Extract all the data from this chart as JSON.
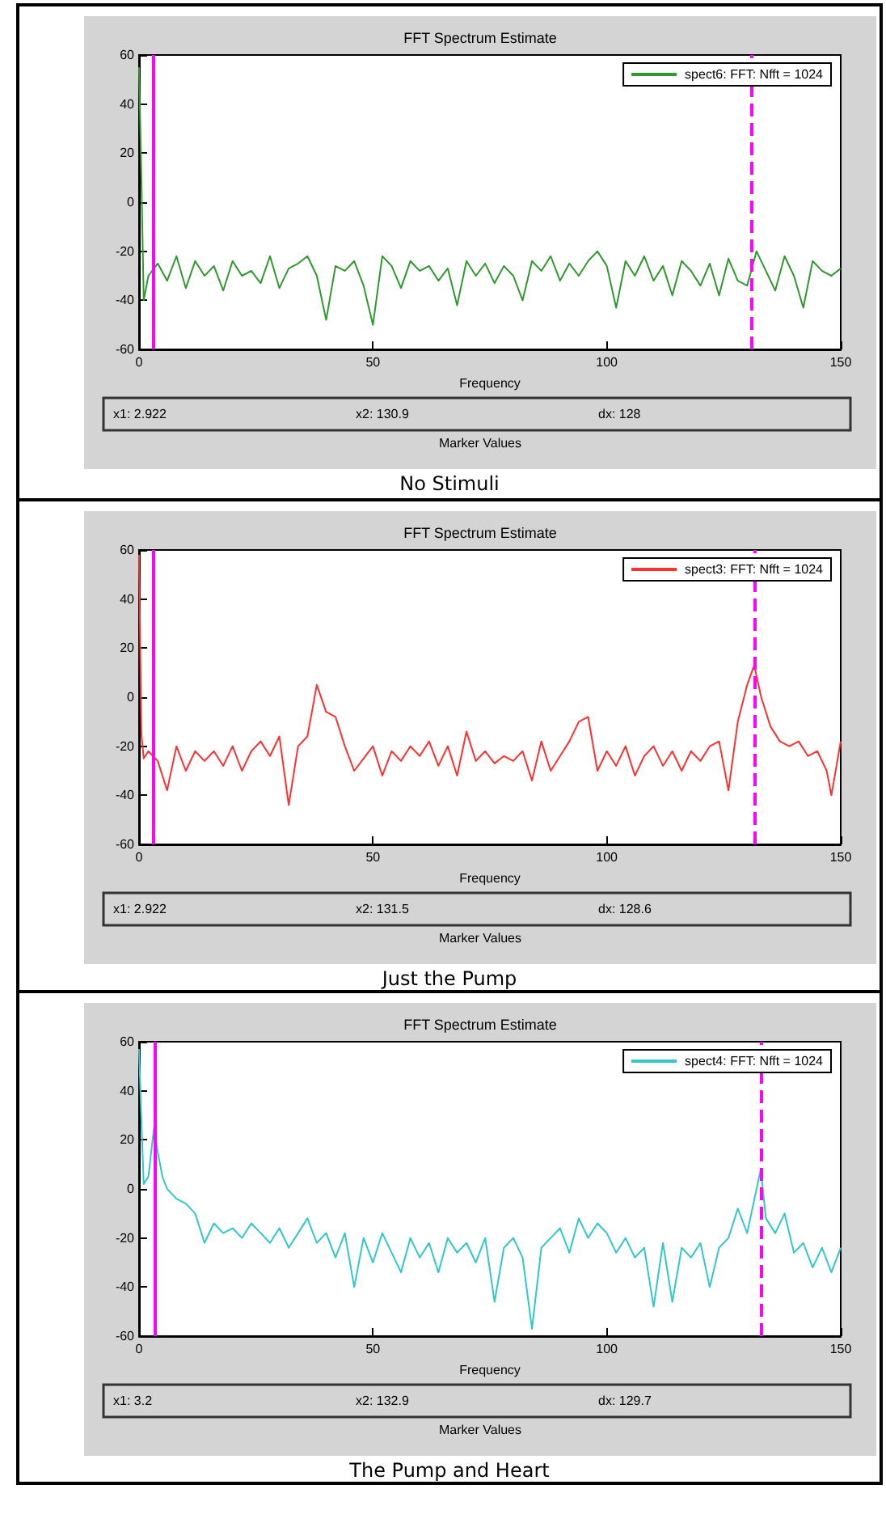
{
  "chart_data": [
    {
      "type": "line",
      "title": "FFT Spectrum Estimate",
      "xlabel": "Frequency",
      "xlim": [
        0,
        150
      ],
      "xticks": [
        0,
        50,
        100,
        150
      ],
      "ylim": [
        -60,
        60
      ],
      "yticks": [
        -60,
        -40,
        -20,
        0,
        20,
        40,
        60
      ],
      "grid": false,
      "legend": "top right",
      "marker": "none",
      "line_style": "solid",
      "series": [
        {
          "name": "spect6: FFT: Nfft = 1024",
          "color": "#2e9a2e",
          "x": [
            0,
            0.5,
            1,
            2,
            4,
            6,
            8,
            10,
            12,
            14,
            16,
            18,
            20,
            22,
            24,
            26,
            28,
            30,
            32,
            34,
            36,
            38,
            40,
            42,
            44,
            46,
            48,
            50,
            52,
            54,
            56,
            58,
            60,
            62,
            64,
            66,
            68,
            70,
            72,
            74,
            76,
            78,
            80,
            82,
            84,
            86,
            88,
            90,
            92,
            94,
            96,
            98,
            100,
            102,
            104,
            106,
            108,
            110,
            112,
            114,
            116,
            118,
            120,
            122,
            124,
            126,
            128,
            130,
            132,
            134,
            136,
            138,
            140,
            142,
            144,
            146,
            148,
            150
          ],
          "values": [
            55,
            10,
            -40,
            -30,
            -25,
            -32,
            -22,
            -35,
            -24,
            -30,
            -26,
            -36,
            -24,
            -30,
            -28,
            -33,
            -22,
            -35,
            -27,
            -25,
            -22,
            -30,
            -48,
            -26,
            -28,
            -24,
            -34,
            -50,
            -22,
            -26,
            -35,
            -24,
            -28,
            -26,
            -32,
            -27,
            -42,
            -24,
            -30,
            -25,
            -33,
            -26,
            -30,
            -40,
            -24,
            -28,
            -22,
            -32,
            -25,
            -30,
            -24,
            -20,
            -26,
            -43,
            -24,
            -30,
            -22,
            -32,
            -26,
            -38,
            -24,
            -28,
            -34,
            -25,
            -38,
            -23,
            -32,
            -34,
            -20,
            -28,
            -36,
            -22,
            -30,
            -43,
            -24,
            -28,
            -30,
            -27
          ]
        }
      ],
      "ref_lines": [
        {
          "axis": "x",
          "value": 2.922,
          "color": "#ff00ff",
          "line_style": "solid"
        },
        {
          "axis": "x",
          "value": 130.9,
          "color": "#ff00ff",
          "line_style": "dashed"
        }
      ],
      "annotations": [
        "x1: 2.922",
        "x2: 130.9",
        "dx: 128",
        "Marker Values",
        "No Stimuli"
      ]
    },
    {
      "type": "line",
      "title": "FFT Spectrum Estimate",
      "xlabel": "Frequency",
      "xlim": [
        0,
        150
      ],
      "xticks": [
        0,
        50,
        100,
        150
      ],
      "ylim": [
        -60,
        60
      ],
      "yticks": [
        -60,
        -40,
        -20,
        0,
        20,
        40,
        60
      ],
      "grid": false,
      "legend": "top right",
      "marker": "none",
      "line_style": "solid",
      "series": [
        {
          "name": "spect3: FFT: Nfft = 1024",
          "color": "#ff3030",
          "x": [
            0,
            0.5,
            1,
            2,
            4,
            6,
            8,
            10,
            12,
            14,
            16,
            18,
            20,
            22,
            24,
            26,
            28,
            30,
            32,
            34,
            36,
            38,
            40,
            42,
            44,
            46,
            48,
            50,
            52,
            54,
            56,
            58,
            60,
            62,
            64,
            66,
            68,
            70,
            72,
            74,
            76,
            78,
            80,
            82,
            84,
            86,
            88,
            90,
            92,
            94,
            96,
            98,
            100,
            102,
            104,
            106,
            108,
            110,
            112,
            114,
            116,
            118,
            120,
            122,
            124,
            126,
            128,
            130,
            131.5,
            133,
            135,
            137,
            139,
            141,
            143,
            145,
            147,
            148,
            150
          ],
          "values": [
            58,
            -15,
            -25,
            -22,
            -26,
            -38,
            -20,
            -30,
            -22,
            -26,
            -22,
            -28,
            -20,
            -30,
            -22,
            -18,
            -24,
            -16,
            -44,
            -20,
            -16,
            5,
            -6,
            -8,
            -20,
            -30,
            -25,
            -20,
            -32,
            -22,
            -26,
            -20,
            -24,
            -18,
            -28,
            -20,
            -32,
            -14,
            -26,
            -22,
            -27,
            -24,
            -26,
            -22,
            -34,
            -18,
            -30,
            -24,
            -18,
            -10,
            -8,
            -30,
            -22,
            -28,
            -20,
            -32,
            -24,
            -20,
            -28,
            -22,
            -30,
            -22,
            -26,
            -20,
            -18,
            -38,
            -10,
            5,
            13,
            0,
            -12,
            -18,
            -20,
            -18,
            -24,
            -22,
            -30,
            -40,
            -18
          ]
        }
      ],
      "ref_lines": [
        {
          "axis": "x",
          "value": 2.922,
          "color": "#ff00ff",
          "line_style": "solid"
        },
        {
          "axis": "x",
          "value": 131.5,
          "color": "#ff00ff",
          "line_style": "dashed"
        }
      ],
      "annotations": [
        "x1: 2.922",
        "x2: 131.5",
        "dx: 128.6",
        "Marker Values",
        "Just the Pump"
      ]
    },
    {
      "type": "line",
      "title": "FFT Spectrum Estimate",
      "xlabel": "Frequency",
      "xlim": [
        0,
        150
      ],
      "xticks": [
        0,
        50,
        100,
        150
      ],
      "ylim": [
        -60,
        60
      ],
      "yticks": [
        -60,
        -40,
        -20,
        0,
        20,
        40,
        60
      ],
      "grid": false,
      "legend": "top right",
      "marker": "none",
      "line_style": "solid",
      "series": [
        {
          "name": "spect4: FFT: Nfft = 1024",
          "color": "#30c8c8",
          "x": [
            0,
            0.5,
            1,
            2,
            3.2,
            4,
            5,
            6,
            8,
            10,
            12,
            14,
            16,
            18,
            20,
            22,
            24,
            26,
            28,
            30,
            32,
            34,
            36,
            38,
            40,
            42,
            44,
            46,
            48,
            50,
            52,
            54,
            56,
            58,
            60,
            62,
            64,
            66,
            68,
            70,
            72,
            74,
            76,
            78,
            80,
            82,
            84,
            86,
            88,
            90,
            92,
            94,
            96,
            98,
            100,
            102,
            104,
            106,
            108,
            110,
            112,
            114,
            116,
            118,
            120,
            122,
            124,
            126,
            128,
            130,
            132.9,
            134,
            136,
            138,
            140,
            142,
            144,
            146,
            148,
            150
          ],
          "values": [
            57,
            28,
            2,
            5,
            25,
            15,
            5,
            0,
            -4,
            -6,
            -10,
            -22,
            -14,
            -18,
            -16,
            -20,
            -14,
            -18,
            -22,
            -16,
            -24,
            -18,
            -12,
            -22,
            -18,
            -28,
            -18,
            -40,
            -20,
            -30,
            -18,
            -26,
            -34,
            -20,
            -28,
            -22,
            -34,
            -20,
            -26,
            -22,
            -30,
            -20,
            -46,
            -24,
            -20,
            -28,
            -57,
            -24,
            -20,
            -16,
            -26,
            -12,
            -20,
            -14,
            -18,
            -26,
            -20,
            -28,
            -24,
            -48,
            -22,
            -46,
            -24,
            -28,
            -22,
            -40,
            -24,
            -20,
            -8,
            -18,
            8,
            -12,
            -18,
            -10,
            -26,
            -22,
            -32,
            -24,
            -34,
            -24
          ]
        }
      ],
      "ref_lines": [
        {
          "axis": "x",
          "value": 3.2,
          "color": "#ff00ff",
          "line_style": "solid"
        },
        {
          "axis": "x",
          "value": 132.9,
          "color": "#ff00ff",
          "line_style": "dashed"
        }
      ],
      "annotations": [
        "x1: 3.2",
        "x2: 132.9",
        "dx: 129.7",
        "Marker Values",
        "The Pump and Heart"
      ]
    }
  ]
}
